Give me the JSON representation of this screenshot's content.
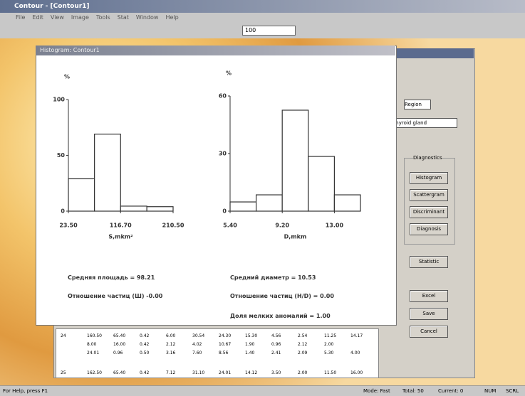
{
  "window": {
    "title": "Contour - [Contour1]",
    "menu": [
      "File",
      "Edit",
      "View",
      "Image",
      "Tools",
      "Stat",
      "Window",
      "Help"
    ],
    "zoom": "100"
  },
  "dialog": {
    "title": "Histogram: Contour1"
  },
  "chart_data": [
    {
      "type": "histogram",
      "y_label": "%",
      "x_label": "S,mkm²",
      "bins": [
        23.5,
        70.1,
        116.7,
        163.6,
        210.5
      ],
      "values": [
        29,
        69,
        4.5,
        4
      ],
      "color": "#ffffff",
      "xlim": [
        23.5,
        210.5
      ],
      "xticks": [
        {
          "value": 23.5,
          "label": "23.50"
        },
        {
          "value": 116.7,
          "label": "116.70"
        },
        {
          "value": 210.5,
          "label": "210.50"
        }
      ],
      "ylim": [
        0,
        100
      ],
      "yticks": [
        0,
        50,
        100
      ]
    },
    {
      "type": "histogram",
      "y_label": "%",
      "x_label": "D,mkm",
      "bins": [
        5.4,
        7.3,
        9.2,
        11.1,
        13.0,
        14.9
      ],
      "values": [
        4.8,
        8.5,
        52.6,
        28.5,
        8.5
      ],
      "color": "#ffffff",
      "xlim": [
        5.4,
        14.9
      ],
      "xticks": [
        {
          "value": 5.4,
          "label": "5.40"
        },
        {
          "value": 9.2,
          "label": "9.20"
        },
        {
          "value": 13.0,
          "label": "13.00"
        }
      ],
      "ylim": [
        0,
        60
      ],
      "yticks": [
        0,
        30,
        60
      ]
    }
  ],
  "stats": [
    "Средняя площадь = 98.21",
    "Отношение частиц (Ш) -0.00",
    "Средний диаметр = 10.53",
    "Отношение частиц (H/D) = 0.00",
    "Доля мелких аномалий = 1.00"
  ],
  "panel": {
    "region_label": "Region",
    "region_value": "Thyroid gland",
    "group": "Diagnostics",
    "buttons": [
      "Histogram",
      "Scattergram",
      "Discriminant",
      "Diagnosis"
    ],
    "statistic": "Statistic",
    "actions": [
      "Excel",
      "Save",
      "Cancel"
    ]
  },
  "table": {
    "rows": [
      [
        "24",
        "160.50",
        "65.40",
        "0.42",
        "6.00",
        "30.54",
        "24.30",
        "15.30",
        "4.56",
        "2.54",
        "11.25",
        "14.17"
      ],
      [
        "",
        "8.00",
        "16.00",
        "0.42",
        "2.12",
        "4.02",
        "10.67",
        "1.90",
        "0.96",
        "2.12",
        "2.00",
        ""
      ],
      [
        "",
        "24.01",
        "0.96",
        "0.50",
        "3.16",
        "7.60",
        "8.56",
        "1.40",
        "2.41",
        "2.09",
        "5.30",
        "4.00"
      ],
      [
        "25",
        "162.50",
        "65.40",
        "0.42",
        "7.12",
        "31.10",
        "24.01",
        "14.12",
        "3.50",
        "2.00",
        "11.50",
        "16.00"
      ]
    ]
  },
  "status": [
    "For Help, press F1",
    "Mode: Fast",
    "Total: 50",
    "Current: 0",
    "NUM",
    "SCRL"
  ]
}
